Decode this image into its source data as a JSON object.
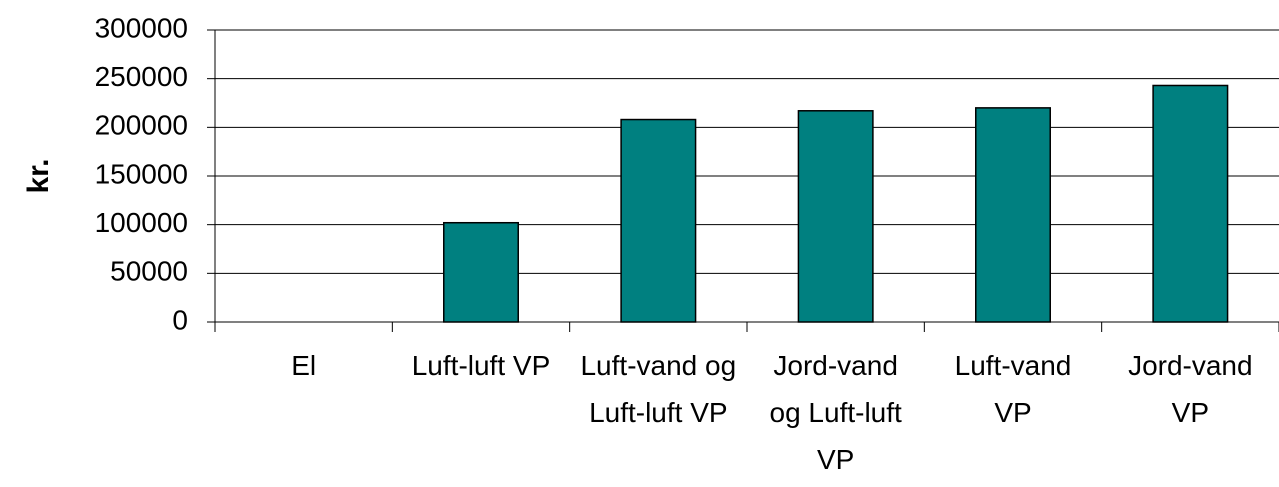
{
  "chart_data": {
    "type": "bar",
    "y_label": "kr.",
    "categories": [
      "El",
      "Luft-luft VP",
      "Luft-vand og Luft-luft VP",
      "Jord-vand og Luft-luft VP",
      "Luft-vand VP",
      "Jord-vand VP"
    ],
    "values": [
      0,
      102000,
      208000,
      217000,
      220000,
      243000
    ],
    "color": "#008080",
    "ylim": [
      0,
      300000
    ],
    "yticks": [
      0,
      50000,
      100000,
      150000,
      200000,
      250000,
      300000
    ],
    "grid": true
  }
}
